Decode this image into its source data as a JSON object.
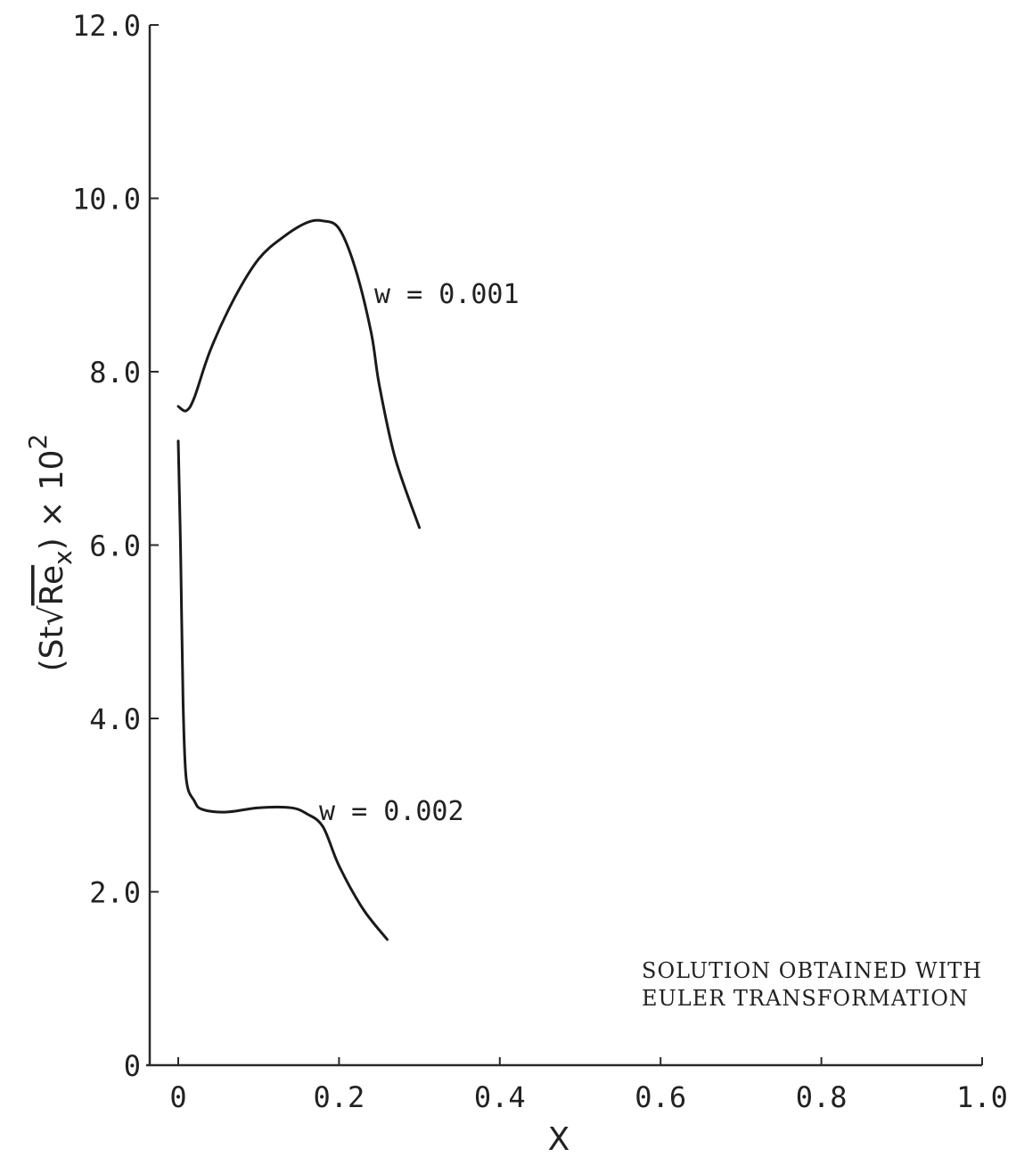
{
  "chart_data": {
    "type": "line",
    "xlabel": "X",
    "ylabel_main": "(St",
    "ylabel_radicand": "Re",
    "ylabel_subscript": "x",
    "ylabel_suffix": ") × 10",
    "ylabel_exponent": "2",
    "xlim": [
      0,
      1.0
    ],
    "ylim": [
      0,
      12.0
    ],
    "x_ticks": [
      "0",
      "0.2",
      "0.4",
      "0.6",
      "0.8",
      "1.0"
    ],
    "y_ticks": [
      "0",
      "2.0",
      "4.0",
      "6.0",
      "8.0",
      "10.0",
      "12.0"
    ],
    "grid": false,
    "series": [
      {
        "name": "w = 0.001",
        "color": "#1a1a1a",
        "x": [
          0.0,
          0.01,
          0.02,
          0.04,
          0.07,
          0.1,
          0.13,
          0.16,
          0.18,
          0.2,
          0.22,
          0.24,
          0.25,
          0.27,
          0.3
        ],
        "y": [
          7.6,
          7.55,
          7.7,
          8.25,
          8.85,
          9.3,
          9.55,
          9.72,
          9.74,
          9.65,
          9.2,
          8.45,
          7.85,
          7.0,
          6.2
        ]
      },
      {
        "name": "w = 0.002",
        "color": "#1a1a1a",
        "x": [
          0.0,
          0.003,
          0.006,
          0.01,
          0.02,
          0.03,
          0.06,
          0.1,
          0.14,
          0.16,
          0.18,
          0.2,
          0.23,
          0.26
        ],
        "y": [
          7.2,
          5.9,
          4.2,
          3.3,
          3.05,
          2.95,
          2.92,
          2.97,
          2.97,
          2.9,
          2.75,
          2.3,
          1.8,
          1.45
        ]
      }
    ],
    "annotation": [
      "SOLUTION OBTAINED WITH",
      "EULER TRANSFORMATION"
    ]
  }
}
